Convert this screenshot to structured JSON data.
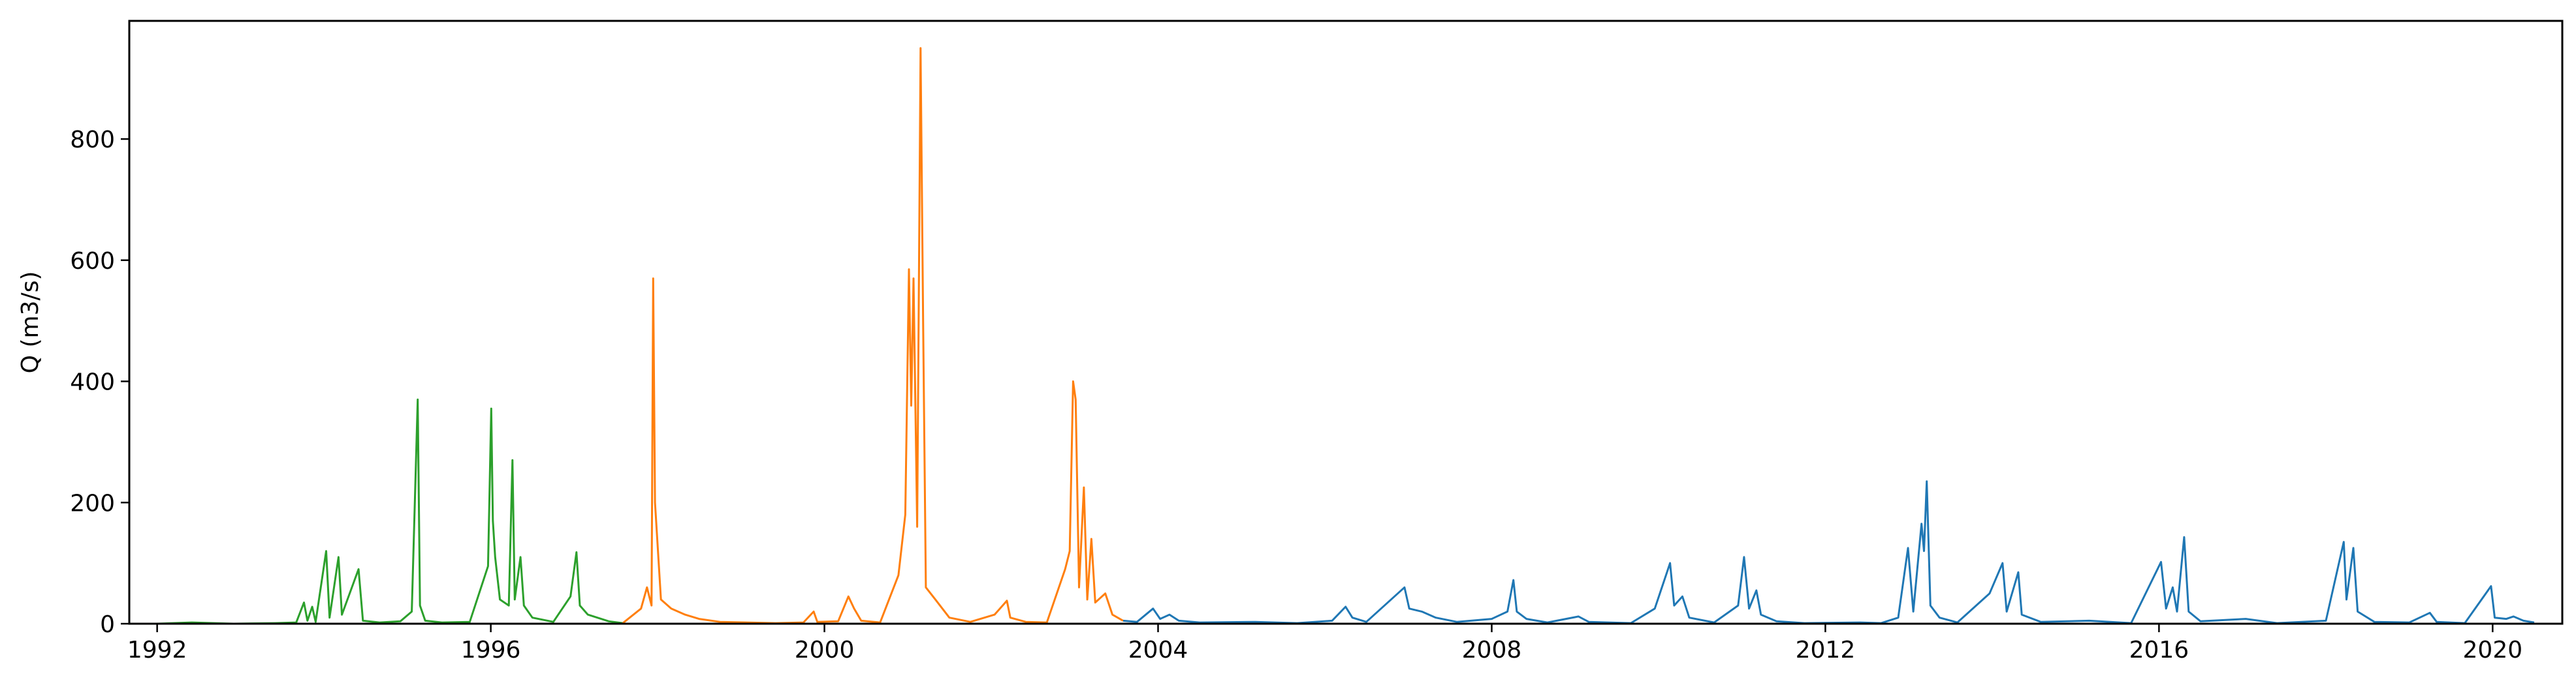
{
  "chart_data": {
    "type": "line",
    "title": "",
    "xlabel": "",
    "ylabel": "Q (m3/s)",
    "xlim": [
      "1991-09-01",
      "2020-11-01"
    ],
    "ylim": [
      0,
      995
    ],
    "xticks": [
      "1992",
      "1996",
      "2000",
      "2004",
      "2008",
      "2012",
      "2016",
      "2020"
    ],
    "yticks": [
      0,
      200,
      400,
      600,
      800
    ],
    "grid": false,
    "legend": "none",
    "series": [
      {
        "color": "#2ca02c",
        "points": [
          [
            "1992-01-01",
            0
          ],
          [
            "1992-06-01",
            2
          ],
          [
            "1992-12-01",
            0
          ],
          [
            "1993-06-01",
            1
          ],
          [
            "1993-09-01",
            2
          ],
          [
            "1993-10-05",
            35
          ],
          [
            "1993-10-20",
            5
          ],
          [
            "1993-11-10",
            28
          ],
          [
            "1993-11-25",
            3
          ],
          [
            "1994-01-10",
            120
          ],
          [
            "1994-01-25",
            10
          ],
          [
            "1994-03-05",
            110
          ],
          [
            "1994-03-20",
            15
          ],
          [
            "1994-06-01",
            90
          ],
          [
            "1994-06-20",
            5
          ],
          [
            "1994-09-01",
            2
          ],
          [
            "1994-12-01",
            4
          ],
          [
            "1995-01-20",
            20
          ],
          [
            "1995-02-15",
            370
          ],
          [
            "1995-02-25",
            30
          ],
          [
            "1995-03-20",
            5
          ],
          [
            "1995-06-01",
            2
          ],
          [
            "1995-10-01",
            3
          ],
          [
            "1995-12-20",
            95
          ],
          [
            "1996-01-03",
            355
          ],
          [
            "1996-01-10",
            170
          ],
          [
            "1996-01-20",
            110
          ],
          [
            "1996-02-10",
            40
          ],
          [
            "1996-03-20",
            30
          ],
          [
            "1996-04-05",
            270
          ],
          [
            "1996-04-15",
            40
          ],
          [
            "1996-05-10",
            110
          ],
          [
            "1996-05-25",
            30
          ],
          [
            "1996-07-01",
            10
          ],
          [
            "1996-10-01",
            3
          ],
          [
            "1996-12-15",
            45
          ],
          [
            "1997-01-10",
            118
          ],
          [
            "1997-01-25",
            30
          ],
          [
            "1997-03-01",
            15
          ],
          [
            "1997-06-01",
            4
          ],
          [
            "1997-08-01",
            1
          ]
        ]
      },
      {
        "color": "#ff7f0e",
        "points": [
          [
            "1997-08-01",
            1
          ],
          [
            "1997-10-20",
            25
          ],
          [
            "1997-11-15",
            60
          ],
          [
            "1997-12-05",
            30
          ],
          [
            "1997-12-12",
            570
          ],
          [
            "1997-12-20",
            200
          ],
          [
            "1998-01-15",
            40
          ],
          [
            "1998-03-01",
            25
          ],
          [
            "1998-05-01",
            15
          ],
          [
            "1998-07-01",
            8
          ],
          [
            "1998-10-01",
            3
          ],
          [
            "1999-06-01",
            1
          ],
          [
            "1999-10-01",
            2
          ],
          [
            "1999-11-15",
            20
          ],
          [
            "1999-12-01",
            3
          ],
          [
            "2000-03-01",
            4
          ],
          [
            "2000-04-15",
            45
          ],
          [
            "2000-05-10",
            25
          ],
          [
            "2000-06-10",
            5
          ],
          [
            "2000-09-01",
            2
          ],
          [
            "2000-11-20",
            80
          ],
          [
            "2000-12-20",
            180
          ],
          [
            "2001-01-05",
            585
          ],
          [
            "2001-01-15",
            360
          ],
          [
            "2001-01-25",
            570
          ],
          [
            "2001-02-10",
            160
          ],
          [
            "2001-02-25",
            950
          ],
          [
            "2001-03-08",
            500
          ],
          [
            "2001-03-20",
            60
          ],
          [
            "2001-05-01",
            40
          ],
          [
            "2001-07-01",
            10
          ],
          [
            "2001-10-01",
            3
          ],
          [
            "2002-01-15",
            15
          ],
          [
            "2002-03-10",
            38
          ],
          [
            "2002-03-25",
            10
          ],
          [
            "2002-06-01",
            3
          ],
          [
            "2002-09-01",
            2
          ],
          [
            "2002-11-20",
            90
          ],
          [
            "2002-12-10",
            120
          ],
          [
            "2002-12-25",
            400
          ],
          [
            "2003-01-05",
            370
          ],
          [
            "2003-01-20",
            60
          ],
          [
            "2003-02-10",
            225
          ],
          [
            "2003-02-25",
            40
          ],
          [
            "2003-03-15",
            140
          ],
          [
            "2003-04-01",
            35
          ],
          [
            "2003-05-15",
            50
          ],
          [
            "2003-06-15",
            15
          ],
          [
            "2003-08-01",
            5
          ]
        ]
      },
      {
        "color": "#1f77b4",
        "points": [
          [
            "2003-08-01",
            5
          ],
          [
            "2003-10-01",
            3
          ],
          [
            "2003-12-10",
            25
          ],
          [
            "2004-01-10",
            8
          ],
          [
            "2004-02-20",
            15
          ],
          [
            "2004-04-01",
            5
          ],
          [
            "2004-07-01",
            2
          ],
          [
            "2005-03-01",
            3
          ],
          [
            "2005-09-01",
            1
          ],
          [
            "2006-02-01",
            5
          ],
          [
            "2006-04-01",
            28
          ],
          [
            "2006-05-01",
            10
          ],
          [
            "2006-07-01",
            3
          ],
          [
            "2006-12-15",
            60
          ],
          [
            "2007-01-05",
            25
          ],
          [
            "2007-03-01",
            20
          ],
          [
            "2007-05-01",
            10
          ],
          [
            "2007-08-01",
            3
          ],
          [
            "2008-01-01",
            8
          ],
          [
            "2008-03-10",
            20
          ],
          [
            "2008-04-05",
            72
          ],
          [
            "2008-04-20",
            20
          ],
          [
            "2008-06-01",
            8
          ],
          [
            "2008-09-01",
            2
          ],
          [
            "2009-01-15",
            12
          ],
          [
            "2009-03-01",
            3
          ],
          [
            "2009-09-01",
            1
          ],
          [
            "2009-12-15",
            25
          ],
          [
            "2010-02-20",
            100
          ],
          [
            "2010-03-10",
            30
          ],
          [
            "2010-04-15",
            45
          ],
          [
            "2010-05-15",
            10
          ],
          [
            "2010-09-01",
            2
          ],
          [
            "2010-12-15",
            30
          ],
          [
            "2011-01-10",
            110
          ],
          [
            "2011-02-01",
            25
          ],
          [
            "2011-03-05",
            55
          ],
          [
            "2011-03-25",
            15
          ],
          [
            "2011-06-01",
            4
          ],
          [
            "2011-10-01",
            1
          ],
          [
            "2012-06-01",
            2
          ],
          [
            "2012-09-01",
            1
          ],
          [
            "2012-11-15",
            10
          ],
          [
            "2012-12-28",
            125
          ],
          [
            "2013-01-20",
            20
          ],
          [
            "2013-02-25",
            165
          ],
          [
            "2013-03-08",
            120
          ],
          [
            "2013-03-20",
            235
          ],
          [
            "2013-04-05",
            30
          ],
          [
            "2013-05-15",
            10
          ],
          [
            "2013-08-01",
            2
          ],
          [
            "2013-12-20",
            50
          ],
          [
            "2014-02-15",
            100
          ],
          [
            "2014-03-05",
            20
          ],
          [
            "2014-04-25",
            85
          ],
          [
            "2014-05-10",
            15
          ],
          [
            "2014-08-01",
            3
          ],
          [
            "2015-03-01",
            5
          ],
          [
            "2015-09-01",
            1
          ],
          [
            "2016-01-10",
            102
          ],
          [
            "2016-02-01",
            25
          ],
          [
            "2016-03-01",
            60
          ],
          [
            "2016-03-20",
            20
          ],
          [
            "2016-04-20",
            143
          ],
          [
            "2016-05-10",
            20
          ],
          [
            "2016-07-01",
            4
          ],
          [
            "2017-01-15",
            8
          ],
          [
            "2017-06-01",
            1
          ],
          [
            "2018-01-01",
            5
          ],
          [
            "2018-03-20",
            135
          ],
          [
            "2018-04-01",
            40
          ],
          [
            "2018-05-01",
            125
          ],
          [
            "2018-05-20",
            20
          ],
          [
            "2018-08-01",
            3
          ],
          [
            "2019-01-01",
            2
          ],
          [
            "2019-04-01",
            18
          ],
          [
            "2019-05-01",
            3
          ],
          [
            "2019-09-01",
            1
          ],
          [
            "2019-12-25",
            62
          ],
          [
            "2020-01-10",
            10
          ],
          [
            "2020-03-01",
            8
          ],
          [
            "2020-04-01",
            12
          ],
          [
            "2020-05-15",
            5
          ],
          [
            "2020-07-01",
            2
          ]
        ]
      }
    ]
  }
}
